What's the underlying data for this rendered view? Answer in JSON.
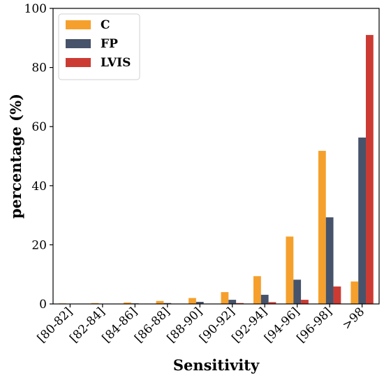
{
  "chart_data": {
    "type": "bar",
    "xlabel": "Sensitivity",
    "ylabel": "percentage (%)",
    "ylim": [
      0,
      100
    ],
    "yticks": [
      0,
      20,
      40,
      60,
      80,
      100
    ],
    "grid": false,
    "legend_position": "top-left",
    "categories": [
      "[80-82]",
      "[82-84]",
      "[84-86]",
      "[86-88]",
      "[88-90]",
      "[90-92]",
      "[92-94]",
      "[94-96]",
      "[96-98]",
      ">98"
    ],
    "series": [
      {
        "name": "C",
        "color": "#f5a02c",
        "values": [
          0.2,
          0.3,
          0.5,
          1.0,
          2.0,
          4.0,
          9.4,
          22.8,
          51.8,
          7.6
        ]
      },
      {
        "name": "FP",
        "color": "#46536a",
        "values": [
          0.1,
          0.1,
          0.2,
          0.3,
          0.7,
          1.4,
          3.1,
          8.2,
          29.3,
          56.3
        ]
      },
      {
        "name": "LVIS",
        "color": "#cc3b33",
        "values": [
          0.0,
          0.0,
          0.0,
          0.1,
          0.1,
          0.3,
          0.6,
          1.4,
          5.9,
          91.0
        ]
      }
    ]
  }
}
